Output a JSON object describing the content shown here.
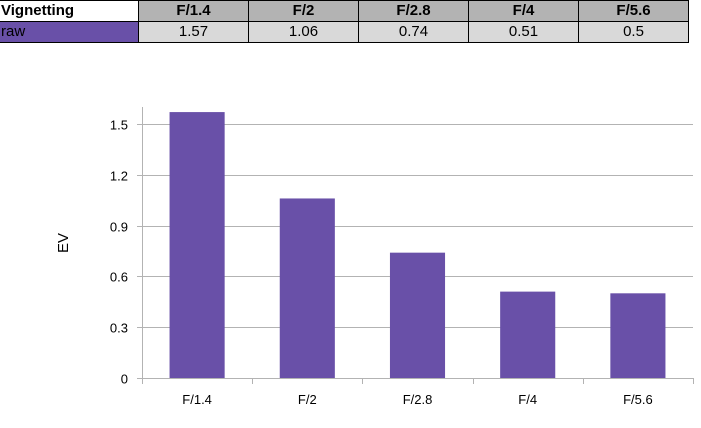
{
  "table": {
    "title": "Vignetting",
    "row_label": "raw",
    "row_color": "#6950a8",
    "columns": [
      "F/1.4",
      "F/2",
      "F/2.8",
      "F/4",
      "F/5.6"
    ],
    "values": [
      "1.57",
      "1.06",
      "0.74",
      "0.51",
      "0.5"
    ]
  },
  "chart_data": {
    "type": "bar",
    "categories": [
      "F/1.4",
      "F/2",
      "F/2.8",
      "F/4",
      "F/5.6"
    ],
    "values": [
      1.57,
      1.06,
      0.74,
      0.51,
      0.5
    ],
    "title": "",
    "xlabel": "",
    "ylabel": "EV",
    "ylim": [
      0,
      1.6
    ],
    "yticks": [
      0,
      0.3,
      0.6,
      0.9,
      1.2,
      1.5
    ],
    "ytick_labels": [
      "0",
      "0.3",
      "0.6",
      "0.9",
      "1.2",
      "1.5"
    ],
    "grid": true,
    "legend": "none",
    "bar_color": "#6950a8",
    "grid_color": "#b3b3b3"
  }
}
